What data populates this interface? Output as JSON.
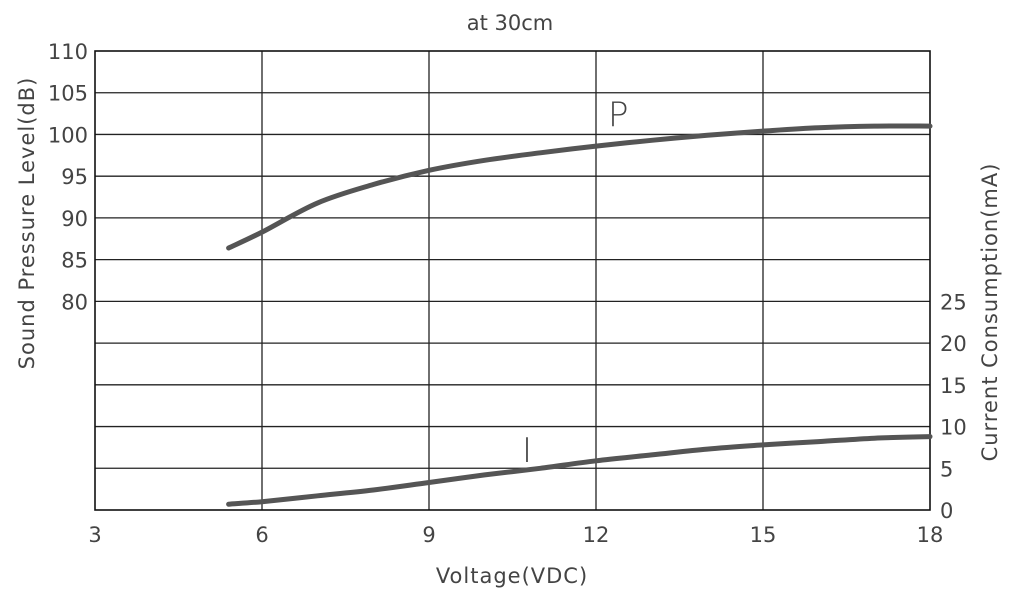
{
  "chart_data": {
    "type": "line",
    "title": "at 30cm",
    "xlabel": "Voltage(VDC)",
    "ylabel_left": "Sound Pressure Level(dB)",
    "ylabel_right": "Current Consumption(mA)",
    "xlim": [
      3,
      18
    ],
    "x_ticks": [
      "3",
      "6",
      "9",
      "12",
      "15",
      "18"
    ],
    "y_left_ticks": [
      "110",
      "105",
      "100",
      "95",
      "90",
      "85",
      "80"
    ],
    "y_right_ticks": [
      "25",
      "20",
      "15",
      "10",
      "5",
      "0"
    ],
    "y_left_range": [
      80,
      110
    ],
    "y_right_range": [
      0,
      25
    ],
    "grid": true,
    "series": [
      {
        "name": "P",
        "axis": "left",
        "color": "#555555",
        "x": [
          5.4,
          6,
          7,
          8,
          9,
          10,
          11,
          12,
          13,
          14,
          15,
          16,
          17,
          18
        ],
        "y": [
          86.4,
          88.3,
          91.8,
          94.0,
          95.7,
          96.9,
          97.8,
          98.6,
          99.3,
          99.9,
          100.4,
          100.8,
          101.0,
          101.0
        ]
      },
      {
        "name": "I",
        "axis": "right",
        "color": "#555555",
        "x": [
          5.4,
          6,
          7,
          8,
          9,
          10,
          11,
          12,
          13,
          14,
          15,
          16,
          17,
          18
        ],
        "y": [
          0.7,
          1.0,
          1.7,
          2.4,
          3.3,
          4.2,
          5.0,
          5.9,
          6.6,
          7.3,
          7.8,
          8.2,
          8.6,
          8.8
        ]
      }
    ]
  }
}
